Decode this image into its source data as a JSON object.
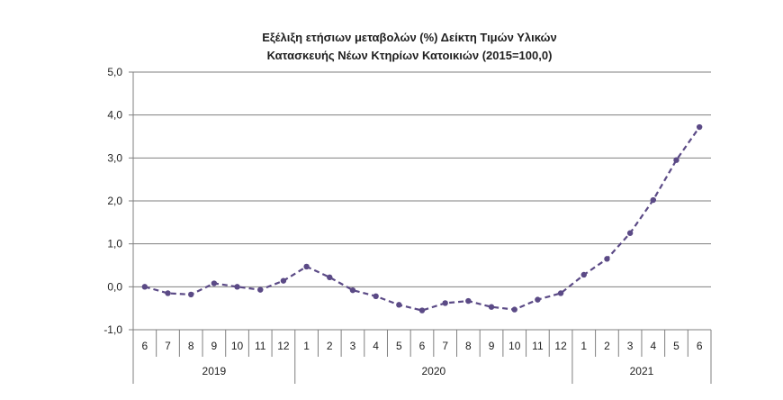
{
  "chart_data": {
    "type": "line",
    "title_line1": "Εξέλιξη ετήσιων μεταβολών (%) Δείκτη Τιμών Υλικών",
    "title_line2": "Κατασκευής Νέων Κτηρίων Κατοικιών (2015=100,0)",
    "xlabel": "",
    "ylabel": "",
    "ylim": [
      -1.0,
      5.0
    ],
    "yticks": [
      "-1,0",
      "0,0",
      "1,0",
      "2,0",
      "3,0",
      "4,0",
      "5,0"
    ],
    "grid": true,
    "months": [
      "6",
      "7",
      "8",
      "9",
      "10",
      "11",
      "12",
      "1",
      "2",
      "3",
      "4",
      "5",
      "6",
      "7",
      "8",
      "9",
      "10",
      "11",
      "12",
      "1",
      "2",
      "3",
      "4",
      "5",
      "6"
    ],
    "years": [
      {
        "label": "2019",
        "start": 0,
        "end": 6
      },
      {
        "label": "2020",
        "start": 7,
        "end": 18
      },
      {
        "label": "2021",
        "start": 19,
        "end": 24
      }
    ],
    "series": [
      {
        "color": "#5b4a86",
        "values": [
          0.0,
          -0.15,
          -0.18,
          0.08,
          0.0,
          -0.07,
          0.14,
          0.47,
          0.22,
          -0.08,
          -0.22,
          -0.42,
          -0.55,
          -0.38,
          -0.33,
          -0.47,
          -0.53,
          -0.3,
          -0.15,
          0.28,
          0.65,
          1.25,
          2.02,
          2.95,
          3.72
        ]
      }
    ]
  }
}
